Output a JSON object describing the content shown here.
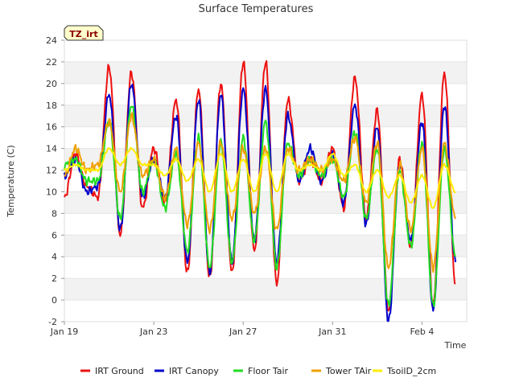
{
  "chart_data": {
    "type": "line",
    "title": "Surface Temperatures",
    "xlabel": "Time",
    "ylabel": "Temperature (C)",
    "badge": "TZ_irt",
    "ylim": [
      -2,
      24
    ],
    "yticks": [
      -2,
      0,
      2,
      4,
      6,
      8,
      10,
      12,
      14,
      16,
      18,
      20,
      22,
      24
    ],
    "xlim": [
      "Jan 19",
      "Feb 6"
    ],
    "xticks": [
      "Jan 19",
      "Jan 23",
      "Jan 27",
      "Jan 31",
      "Feb 4"
    ],
    "grid": "horizontal bands",
    "legend_position": "bottom",
    "x": [
      "Jan 19",
      "Jan 19.5",
      "Jan 20",
      "Jan 20.5",
      "Jan 21",
      "Jan 21.5",
      "Jan 22",
      "Jan 22.5",
      "Jan 23",
      "Jan 23.5",
      "Jan 24",
      "Jan 24.5",
      "Jan 25",
      "Jan 25.5",
      "Jan 26",
      "Jan 26.5",
      "Jan 27",
      "Jan 27.5",
      "Jan 28",
      "Jan 28.5",
      "Jan 29",
      "Jan 29.5",
      "Jan 30",
      "Jan 30.5",
      "Jan 31",
      "Jan 31.5",
      "Feb 1",
      "Feb 1.5",
      "Feb 2",
      "Feb 2.5",
      "Feb 3",
      "Feb 3.5",
      "Feb 4",
      "Feb 4.5",
      "Feb 5",
      "Feb 5.5"
    ],
    "series": [
      {
        "name": "IRT Ground",
        "color": "#ee1111",
        "values": [
          9.5,
          13.5,
          10.5,
          9.5,
          21.5,
          6.0,
          21.0,
          8.5,
          14.0,
          9.0,
          18.5,
          2.5,
          19.5,
          2.0,
          20.0,
          2.5,
          22.0,
          4.5,
          22.0,
          1.5,
          18.5,
          11.0,
          13.0,
          11.0,
          14.0,
          8.5,
          20.5,
          7.5,
          17.5,
          -1.0,
          13.0,
          5.0,
          19.0,
          -0.5,
          21.0,
          1.5
        ]
      },
      {
        "name": "IRT Canopy",
        "color": "#0000cc",
        "values": [
          11.5,
          13.0,
          10.0,
          10.5,
          19.0,
          6.5,
          20.0,
          9.5,
          13.0,
          9.5,
          17.0,
          3.5,
          18.5,
          2.5,
          19.0,
          3.5,
          19.5,
          5.5,
          19.5,
          3.5,
          17.0,
          11.0,
          14.0,
          11.0,
          13.5,
          9.0,
          18.0,
          7.0,
          16.0,
          -2.0,
          12.5,
          5.5,
          16.5,
          -1.0,
          18.0,
          3.5
        ]
      },
      {
        "name": "Floor Tair",
        "color": "#22dd22",
        "values": [
          12.5,
          13.0,
          11.0,
          11.0,
          16.5,
          7.5,
          18.0,
          10.0,
          13.0,
          8.5,
          13.5,
          4.5,
          15.0,
          3.0,
          14.5,
          3.5,
          15.0,
          5.5,
          16.5,
          3.0,
          14.5,
          11.5,
          13.0,
          11.5,
          13.0,
          9.5,
          15.5,
          7.5,
          14.0,
          -0.5,
          12.0,
          5.0,
          14.5,
          -0.5,
          14.0,
          4.0
        ]
      },
      {
        "name": "Tower TAir",
        "color": "#f0a000",
        "values": [
          11.5,
          14.0,
          12.0,
          12.5,
          16.5,
          10.0,
          17.0,
          11.5,
          13.0,
          9.5,
          14.0,
          7.0,
          14.5,
          6.5,
          14.5,
          7.5,
          14.0,
          8.0,
          14.0,
          6.5,
          14.0,
          12.0,
          13.0,
          12.0,
          13.0,
          11.0,
          15.0,
          9.0,
          14.5,
          3.0,
          12.5,
          6.5,
          14.0,
          3.0,
          14.5,
          7.5
        ]
      },
      {
        "name": "TsoilD_2cm",
        "color": "#ffee00",
        "values": [
          12.0,
          12.5,
          12.0,
          12.0,
          14.0,
          12.5,
          14.0,
          12.5,
          12.5,
          11.5,
          13.0,
          11.0,
          13.0,
          10.0,
          13.5,
          10.0,
          13.0,
          10.0,
          13.5,
          10.0,
          13.5,
          12.0,
          12.5,
          12.0,
          13.5,
          11.5,
          12.5,
          10.0,
          12.0,
          9.5,
          11.5,
          9.0,
          11.5,
          8.5,
          12.5,
          10.0
        ]
      }
    ]
  }
}
